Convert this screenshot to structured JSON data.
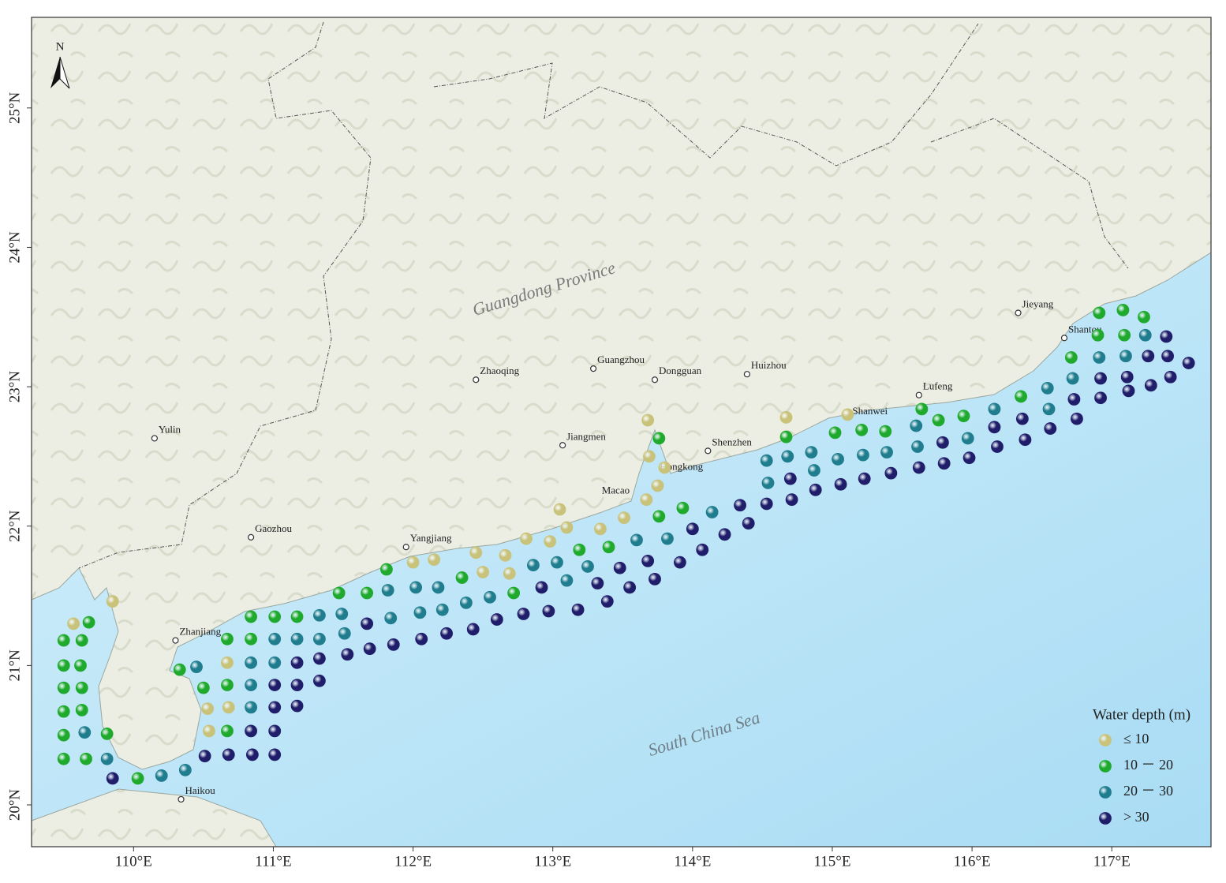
{
  "map": {
    "xlim": [
      109.27,
      117.71
    ],
    "ylim": [
      19.7,
      25.65
    ],
    "xticks": [
      {
        "value": 110,
        "label": "110°E"
      },
      {
        "value": 111,
        "label": "111°E"
      },
      {
        "value": 112,
        "label": "112°E"
      },
      {
        "value": 113,
        "label": "113°E"
      },
      {
        "value": 114,
        "label": "114°E"
      },
      {
        "value": 115,
        "label": "115°E"
      },
      {
        "value": 116,
        "label": "116°E"
      },
      {
        "value": 117,
        "label": "117°E"
      }
    ],
    "yticks": [
      {
        "value": 20,
        "label": "20°N"
      },
      {
        "value": 21,
        "label": "21°N"
      },
      {
        "value": 22,
        "label": "22°N"
      },
      {
        "value": 23,
        "label": "23°N"
      },
      {
        "value": 24,
        "label": "24°N"
      },
      {
        "value": 25,
        "label": "25°N"
      }
    ],
    "north": "N",
    "province": "Guangdong Province",
    "sea": "South China Sea",
    "cities": [
      {
        "name": "Guangzhou",
        "lon": 113.29,
        "lat": 23.13
      },
      {
        "name": "Dongguan",
        "lon": 113.73,
        "lat": 23.05
      },
      {
        "name": "Huizhou",
        "lon": 114.39,
        "lat": 23.09
      },
      {
        "name": "Zhaoqing",
        "lon": 112.45,
        "lat": 23.05
      },
      {
        "name": "Jiangmen",
        "lon": 113.07,
        "lat": 22.58
      },
      {
        "name": "Shenzhen",
        "lon": 114.11,
        "lat": 22.54
      },
      {
        "name": "Yangjiang",
        "lon": 111.95,
        "lat": 21.85
      },
      {
        "name": "Gaozhou",
        "lon": 110.84,
        "lat": 21.92
      },
      {
        "name": "Yulin",
        "lon": 110.15,
        "lat": 22.63
      },
      {
        "name": "Zhanjiang",
        "lon": 110.3,
        "lat": 21.18
      },
      {
        "name": "Haikou",
        "lon": 110.34,
        "lat": 20.04
      },
      {
        "name": "Jieyang",
        "lon": 116.33,
        "lat": 23.53
      },
      {
        "name": "Shantou",
        "lon": 116.66,
        "lat": 23.35
      },
      {
        "name": "Lufeng",
        "lon": 115.62,
        "lat": 22.94
      }
    ],
    "places": [
      {
        "name": "Hongkong",
        "lon": 113.92,
        "lat": 22.42
      },
      {
        "name": "Macao",
        "lon": 113.45,
        "lat": 22.25
      },
      {
        "name": "Shanwei",
        "lon": 115.27,
        "lat": 22.82
      }
    ],
    "legend": {
      "title": "Water depth (m)",
      "classes": [
        {
          "label": "≤ 10",
          "color": "#c9c27a",
          "points": [
            [
              109.85,
              21.46
            ],
            [
              109.57,
              21.3
            ],
            [
              110.54,
              20.53
            ],
            [
              110.53,
              20.69
            ],
            [
              110.68,
              20.7
            ],
            [
              110.67,
              21.02
            ],
            [
              112.0,
              21.74
            ],
            [
              112.15,
              21.76
            ],
            [
              112.45,
              21.81
            ],
            [
              112.5,
              21.67
            ],
            [
              112.66,
              21.79
            ],
            [
              112.69,
              21.66
            ],
            [
              112.81,
              21.91
            ],
            [
              112.98,
              21.89
            ],
            [
              113.05,
              22.12
            ],
            [
              113.1,
              21.99
            ],
            [
              113.34,
              21.98
            ],
            [
              113.51,
              22.06
            ],
            [
              113.67,
              22.19
            ],
            [
              113.68,
              22.76
            ],
            [
              113.69,
              22.5
            ],
            [
              113.8,
              22.42
            ],
            [
              113.75,
              22.29
            ],
            [
              114.67,
              22.78
            ],
            [
              115.11,
              22.8
            ]
          ]
        },
        {
          "label": "10 － 20",
          "color": "#1faa2e",
          "points": [
            [
              109.68,
              21.31
            ],
            [
              109.5,
              21.18
            ],
            [
              109.63,
              21.18
            ],
            [
              109.5,
              21.0
            ],
            [
              109.62,
              21.0
            ],
            [
              109.5,
              20.84
            ],
            [
              109.63,
              20.84
            ],
            [
              109.5,
              20.67
            ],
            [
              109.63,
              20.68
            ],
            [
              109.5,
              20.5
            ],
            [
              109.81,
              20.51
            ],
            [
              109.5,
              20.33
            ],
            [
              109.66,
              20.33
            ],
            [
              110.03,
              20.19
            ],
            [
              110.67,
              20.53
            ],
            [
              110.33,
              20.97
            ],
            [
              110.5,
              20.84
            ],
            [
              110.67,
              20.86
            ],
            [
              110.67,
              21.19
            ],
            [
              110.84,
              21.19
            ],
            [
              110.84,
              21.35
            ],
            [
              111.01,
              21.35
            ],
            [
              111.17,
              21.35
            ],
            [
              111.47,
              21.52
            ],
            [
              111.67,
              21.52
            ],
            [
              111.81,
              21.69
            ],
            [
              112.35,
              21.63
            ],
            [
              112.72,
              21.52
            ],
            [
              113.19,
              21.83
            ],
            [
              113.4,
              21.85
            ],
            [
              113.76,
              22.63
            ],
            [
              113.76,
              22.07
            ],
            [
              113.93,
              22.13
            ],
            [
              114.67,
              22.64
            ],
            [
              115.02,
              22.67
            ],
            [
              115.21,
              22.69
            ],
            [
              115.38,
              22.68
            ],
            [
              115.64,
              22.84
            ],
            [
              115.76,
              22.76
            ],
            [
              115.94,
              22.79
            ],
            [
              116.35,
              22.93
            ],
            [
              116.71,
              23.21
            ],
            [
              116.91,
              23.53
            ],
            [
              116.9,
              23.37
            ],
            [
              117.08,
              23.55
            ],
            [
              117.09,
              23.37
            ],
            [
              117.23,
              23.5
            ]
          ]
        },
        {
          "label": "20 － 30",
          "color": "#1f7d8e",
          "points": [
            [
              109.65,
              20.52
            ],
            [
              109.81,
              20.33
            ],
            [
              110.2,
              20.21
            ],
            [
              110.37,
              20.25
            ],
            [
              110.84,
              20.7
            ],
            [
              110.45,
              20.99
            ],
            [
              110.84,
              20.86
            ],
            [
              110.84,
              21.02
            ],
            [
              111.01,
              21.02
            ],
            [
              111.01,
              21.19
            ],
            [
              111.17,
              21.19
            ],
            [
              111.33,
              21.19
            ],
            [
              111.51,
              21.23
            ],
            [
              111.33,
              21.36
            ],
            [
              111.49,
              21.37
            ],
            [
              111.82,
              21.54
            ],
            [
              111.84,
              21.34
            ],
            [
              112.02,
              21.56
            ],
            [
              112.05,
              21.38
            ],
            [
              112.18,
              21.56
            ],
            [
              112.21,
              21.4
            ],
            [
              112.38,
              21.45
            ],
            [
              112.55,
              21.49
            ],
            [
              112.86,
              21.72
            ],
            [
              113.03,
              21.74
            ],
            [
              113.1,
              21.61
            ],
            [
              113.25,
              21.71
            ],
            [
              113.6,
              21.9
            ],
            [
              113.82,
              21.91
            ],
            [
              114.14,
              22.1
            ],
            [
              114.54,
              22.31
            ],
            [
              114.53,
              22.47
            ],
            [
              114.68,
              22.5
            ],
            [
              114.85,
              22.53
            ],
            [
              114.87,
              22.4
            ],
            [
              115.04,
              22.48
            ],
            [
              115.22,
              22.51
            ],
            [
              115.39,
              22.53
            ],
            [
              115.6,
              22.72
            ],
            [
              115.61,
              22.57
            ],
            [
              115.97,
              22.63
            ],
            [
              116.16,
              22.84
            ],
            [
              116.54,
              22.99
            ],
            [
              116.55,
              22.84
            ],
            [
              116.72,
              23.06
            ],
            [
              116.91,
              23.21
            ],
            [
              117.1,
              23.22
            ],
            [
              117.24,
              23.37
            ]
          ]
        },
        {
          "label": "> 30",
          "color": "#201d6a",
          "points": [
            [
              109.85,
              20.19
            ],
            [
              110.51,
              20.35
            ],
            [
              110.68,
              20.36
            ],
            [
              110.85,
              20.36
            ],
            [
              111.01,
              20.36
            ],
            [
              110.84,
              20.53
            ],
            [
              111.01,
              20.53
            ],
            [
              111.01,
              20.7
            ],
            [
              111.17,
              20.71
            ],
            [
              111.01,
              20.86
            ],
            [
              111.17,
              20.86
            ],
            [
              111.33,
              20.89
            ],
            [
              111.17,
              21.02
            ],
            [
              111.33,
              21.05
            ],
            [
              111.53,
              21.08
            ],
            [
              111.67,
              21.3
            ],
            [
              111.69,
              21.12
            ],
            [
              111.86,
              21.15
            ],
            [
              112.06,
              21.19
            ],
            [
              112.24,
              21.23
            ],
            [
              112.43,
              21.26
            ],
            [
              112.6,
              21.33
            ],
            [
              112.79,
              21.37
            ],
            [
              112.92,
              21.56
            ],
            [
              112.97,
              21.39
            ],
            [
              113.18,
              21.4
            ],
            [
              113.32,
              21.59
            ],
            [
              113.39,
              21.46
            ],
            [
              113.48,
              21.7
            ],
            [
              113.55,
              21.56
            ],
            [
              113.68,
              21.75
            ],
            [
              113.73,
              21.62
            ],
            [
              113.91,
              21.74
            ],
            [
              114.0,
              21.98
            ],
            [
              114.07,
              21.83
            ],
            [
              114.23,
              21.94
            ],
            [
              114.34,
              22.15
            ],
            [
              114.4,
              22.02
            ],
            [
              114.53,
              22.16
            ],
            [
              114.7,
              22.34
            ],
            [
              114.71,
              22.19
            ],
            [
              114.88,
              22.26
            ],
            [
              115.06,
              22.3
            ],
            [
              115.23,
              22.34
            ],
            [
              115.42,
              22.38
            ],
            [
              115.62,
              22.42
            ],
            [
              115.79,
              22.6
            ],
            [
              115.8,
              22.45
            ],
            [
              115.98,
              22.49
            ],
            [
              116.16,
              22.71
            ],
            [
              116.18,
              22.57
            ],
            [
              116.36,
              22.77
            ],
            [
              116.38,
              22.62
            ],
            [
              116.56,
              22.7
            ],
            [
              116.73,
              22.91
            ],
            [
              116.75,
              22.77
            ],
            [
              116.92,
              23.06
            ],
            [
              116.92,
              22.92
            ],
            [
              117.11,
              23.07
            ],
            [
              117.12,
              22.97
            ],
            [
              117.26,
              23.22
            ],
            [
              117.28,
              23.01
            ],
            [
              117.39,
              23.36
            ],
            [
              117.4,
              23.22
            ],
            [
              117.42,
              23.07
            ],
            [
              117.55,
              23.17
            ]
          ]
        }
      ]
    }
  }
}
